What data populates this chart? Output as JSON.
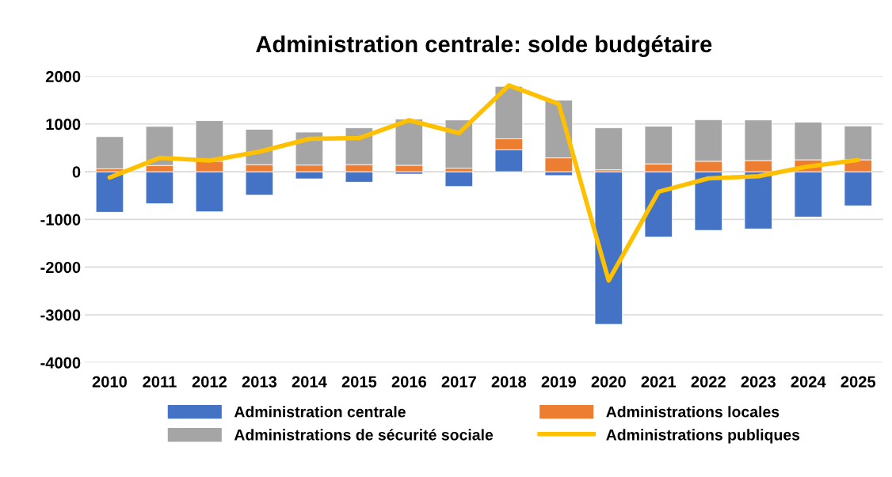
{
  "chart_data": {
    "type": "bar",
    "title": "Administration centrale: solde budgétaire",
    "stacked": true,
    "categories": [
      "2010",
      "2011",
      "2012",
      "2013",
      "2014",
      "2015",
      "2016",
      "2017",
      "2018",
      "2019",
      "2020",
      "2021",
      "2022",
      "2023",
      "2024",
      "2025"
    ],
    "series": [
      {
        "name": "Administration centrale",
        "color": "#4472c4",
        "values": [
          -850,
          -670,
          -840,
          -490,
          -150,
          -220,
          -50,
          -310,
          460,
          -80,
          -3200,
          -1370,
          -1230,
          -1200,
          -950,
          -715
        ]
      },
      {
        "name": "Administrations locales",
        "color": "#ed7d31",
        "values": [
          60,
          130,
          220,
          150,
          140,
          150,
          135,
          75,
          230,
          290,
          40,
          165,
          220,
          235,
          250,
          250
        ]
      },
      {
        "name": "Administrations de sécurité sociale",
        "color": "#a5a5a5",
        "values": [
          675,
          820,
          850,
          740,
          690,
          770,
          970,
          1010,
          1100,
          1210,
          880,
          790,
          870,
          850,
          790,
          710
        ]
      },
      {
        "name": "Administrations publiques",
        "color": "#ffc000",
        "type": "line",
        "values": [
          -120,
          290,
          235,
          420,
          690,
          705,
          1080,
          810,
          1810,
          1420,
          -2280,
          -420,
          -140,
          -95,
          110,
          245
        ]
      }
    ],
    "ylim": [
      -4000,
      2000
    ],
    "yticks": [
      -4000,
      -3000,
      -2000,
      -1000,
      0,
      1000,
      2000
    ],
    "grid": "y",
    "legend": "bottom",
    "marker": "none",
    "line_style": "solid"
  }
}
